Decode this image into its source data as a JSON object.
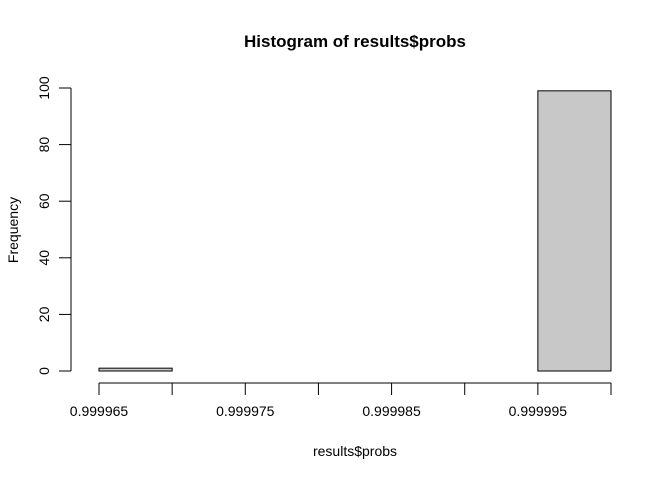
{
  "chart_data": {
    "type": "bar",
    "title": "Histogram of results$probs",
    "xlabel": "results$probs",
    "ylabel": "Frequency",
    "bins": [
      {
        "start": 0.999965,
        "end": 0.99997,
        "count": 1
      },
      {
        "start": 0.99997,
        "end": 0.999975,
        "count": 0
      },
      {
        "start": 0.999975,
        "end": 0.99998,
        "count": 0
      },
      {
        "start": 0.99998,
        "end": 0.999985,
        "count": 0
      },
      {
        "start": 0.999985,
        "end": 0.99999,
        "count": 0
      },
      {
        "start": 0.99999,
        "end": 0.999995,
        "count": 0
      },
      {
        "start": 0.999995,
        "end": 1.0,
        "count": 99
      }
    ],
    "xlim": [
      0.999965,
      1.0
    ],
    "ylim": [
      0,
      100
    ],
    "x_major_ticks": [
      0.999965,
      0.999975,
      0.999985,
      0.999995
    ],
    "x_minor_ticks": [
      0.99997,
      0.99998,
      0.99999,
      1.0
    ],
    "x_tick_labels": [
      "0.999965",
      "0.999975",
      "0.999985",
      "0.999995"
    ],
    "y_ticks": [
      0,
      20,
      40,
      60,
      80,
      100
    ],
    "y_tick_labels": [
      "0",
      "20",
      "40",
      "60",
      "80",
      "100"
    ],
    "bar_fill": "#c8c8c8",
    "bar_stroke": "#000000",
    "grid": false,
    "legend": "none"
  }
}
